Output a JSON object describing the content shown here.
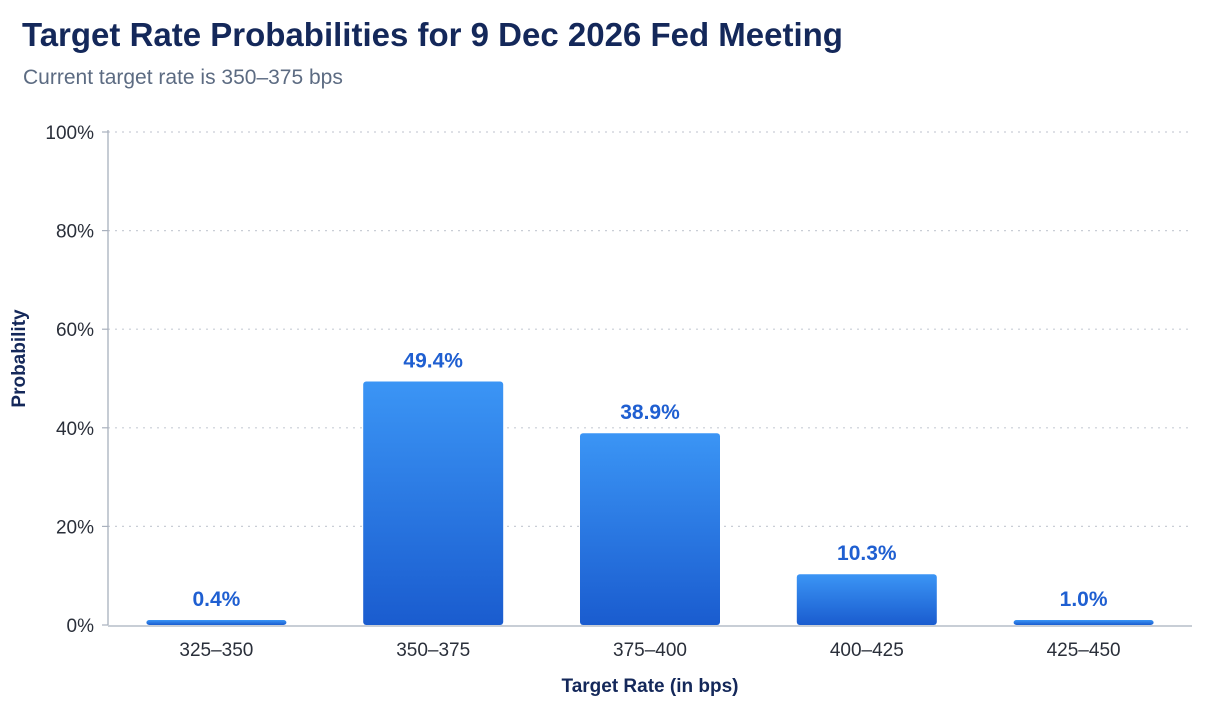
{
  "title": "Target Rate Probabilities for 9 Dec 2026 Fed Meeting",
  "subtitle": "Current target rate is 350–375 bps",
  "colors": {
    "bar_top": "#3b95f5",
    "bar_bottom": "#1a5ccf",
    "label": "#1f5fd1",
    "title": "#14285a",
    "grid": "#c9ced6",
    "axis": "#a8b0bd"
  },
  "chart_data": {
    "type": "bar",
    "title": "Target Rate Probabilities for 9 Dec 2026 Fed Meeting",
    "subtitle": "Current target rate is 350–375 bps",
    "xlabel": "Target Rate (in bps)",
    "ylabel": "Probability",
    "categories": [
      "325–350",
      "350–375",
      "375–400",
      "400–425",
      "425–450"
    ],
    "values": [
      0.4,
      49.4,
      38.9,
      10.3,
      1.0
    ],
    "data_labels": [
      "0.4%",
      "49.4%",
      "38.9%",
      "10.3%",
      "1.0%"
    ],
    "ylim": [
      0,
      100
    ],
    "yticks": [
      0,
      20,
      40,
      60,
      80,
      100
    ],
    "ytick_labels": [
      "0%",
      "20%",
      "40%",
      "60%",
      "80%",
      "100%"
    ],
    "grid": true,
    "grid_style": "dotted"
  }
}
